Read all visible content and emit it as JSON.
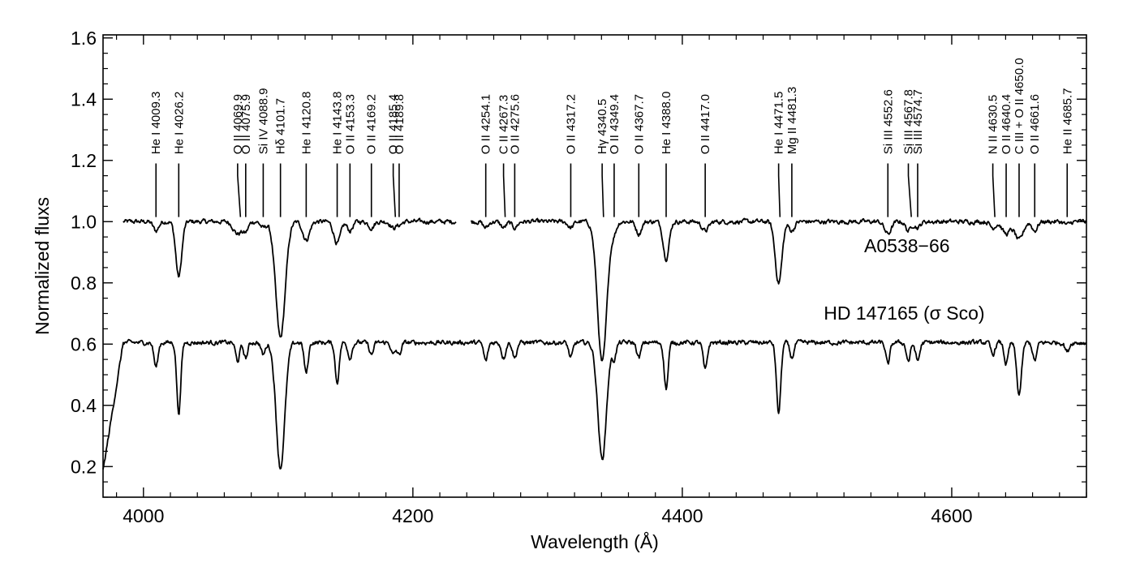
{
  "chart_data": {
    "type": "line",
    "title": "",
    "xlabel": "Wavelength (Å)",
    "ylabel": "Normalized fluxs",
    "xlim": [
      3970,
      4700
    ],
    "ylim": [
      0.1,
      1.61
    ],
    "x_ticks": [
      4000,
      4200,
      4400,
      4600
    ],
    "x_tick_labels": [
      "4000",
      "4200",
      "4400",
      "4600"
    ],
    "y_ticks": [
      0.2,
      0.4,
      0.6,
      0.8,
      1.0,
      1.2,
      1.4,
      1.6
    ],
    "y_tick_labels": [
      "0.2",
      "0.4",
      "0.6",
      "0.8",
      "1.0",
      "1.2",
      "1.4",
      "1.6"
    ],
    "x_minor_step": 20,
    "y_minor_step": 0.05,
    "grid": false,
    "series": [
      {
        "name": "A0538−66",
        "continuum": 1.0,
        "noise": 0.012,
        "gaps": [
          [
            4232,
            4243
          ]
        ],
        "range": [
          3985,
          4700
        ],
        "label_at": [
          4535,
          0.9
        ],
        "lines": [
          [
            4009.3,
            0.03,
            2
          ],
          [
            4026.2,
            0.18,
            2.2
          ],
          [
            4069.9,
            0.04,
            3
          ],
          [
            4075.9,
            0.03,
            2
          ],
          [
            4088.9,
            0.02,
            2
          ],
          [
            4101.7,
            0.38,
            3.5
          ],
          [
            4120.8,
            0.06,
            2.5
          ],
          [
            4143.8,
            0.07,
            2.5
          ],
          [
            4153.3,
            0.03,
            2
          ],
          [
            4169.2,
            0.02,
            2
          ],
          [
            4185.4,
            0.02,
            2
          ],
          [
            4189.8,
            0.01,
            2
          ],
          [
            4254.1,
            0.02,
            2
          ],
          [
            4267.3,
            0.02,
            2
          ],
          [
            4275.6,
            0.02,
            2
          ],
          [
            4317.2,
            0.02,
            2
          ],
          [
            4340.5,
            0.46,
            3.5
          ],
          [
            4349.4,
            0.03,
            2
          ],
          [
            4367.7,
            0.04,
            2
          ],
          [
            4388.0,
            0.12,
            2.2
          ],
          [
            4417.0,
            0.03,
            2.5
          ],
          [
            4471.5,
            0.2,
            2.5
          ],
          [
            4481.3,
            0.03,
            2
          ],
          [
            4552.6,
            0.04,
            2.5
          ],
          [
            4567.8,
            0.03,
            2
          ],
          [
            4574.7,
            0.02,
            2
          ],
          [
            4630.5,
            0.02,
            2
          ],
          [
            4640.4,
            0.04,
            3
          ],
          [
            4650.0,
            0.06,
            3
          ],
          [
            4661.6,
            0.03,
            2
          ],
          [
            4685.7,
            0.01,
            2
          ]
        ]
      },
      {
        "name": "HD 147165  (σ Sco)",
        "continuum": 0.605,
        "noise": 0.012,
        "gaps": [],
        "range": [
          3970,
          4700
        ],
        "label_at": [
          4505,
          0.68
        ],
        "lines": [
          [
            4009.3,
            0.08,
            1.5
          ],
          [
            4026.2,
            0.23,
            1.5
          ],
          [
            4069.9,
            0.06,
            1.5
          ],
          [
            4075.9,
            0.05,
            1.5
          ],
          [
            4088.9,
            0.04,
            1.5
          ],
          [
            4101.7,
            0.41,
            3.2
          ],
          [
            4120.8,
            0.1,
            1.5
          ],
          [
            4143.8,
            0.13,
            1.5
          ],
          [
            4153.3,
            0.05,
            1.5
          ],
          [
            4169.2,
            0.04,
            1.5
          ],
          [
            4185.4,
            0.04,
            1.5
          ],
          [
            4189.8,
            0.04,
            1.5
          ],
          [
            4254.1,
            0.06,
            1.5
          ],
          [
            4267.3,
            0.05,
            1.5
          ],
          [
            4275.6,
            0.05,
            1.5
          ],
          [
            4317.2,
            0.05,
            1.5
          ],
          [
            4340.5,
            0.38,
            3.2
          ],
          [
            4349.4,
            0.05,
            1.5
          ],
          [
            4367.7,
            0.05,
            1.5
          ],
          [
            4388.0,
            0.15,
            1.5
          ],
          [
            4417.0,
            0.09,
            1.5
          ],
          [
            4471.5,
            0.23,
            1.6
          ],
          [
            4481.3,
            0.05,
            1.5
          ],
          [
            4552.6,
            0.07,
            1.5
          ],
          [
            4567.8,
            0.06,
            1.5
          ],
          [
            4574.7,
            0.06,
            1.5
          ],
          [
            4630.5,
            0.04,
            1.5
          ],
          [
            4640.4,
            0.07,
            1.5
          ],
          [
            4650.0,
            0.17,
            1.8
          ],
          [
            4661.6,
            0.06,
            1.5
          ],
          [
            4685.7,
            0.03,
            1.5
          ]
        ]
      }
    ],
    "line_ids": [
      {
        "wl": 4009.3,
        "label": "He I  4009.3"
      },
      {
        "wl": 4026.2,
        "label": "He I  4026.2"
      },
      {
        "wl": 4069.9,
        "label": "O II  4069.9",
        "slant_to": 4072.0
      },
      {
        "wl": 4075.9,
        "label": "O II  4075.9"
      },
      {
        "wl": 4088.9,
        "label": "Si IV  4088.9"
      },
      {
        "wl": 4101.7,
        "label": "Hδ  4101.7"
      },
      {
        "wl": 4120.8,
        "label": "He I  4120.8"
      },
      {
        "wl": 4143.8,
        "label": "He I  4143.8"
      },
      {
        "wl": 4153.3,
        "label": "O II  4153.3"
      },
      {
        "wl": 4169.2,
        "label": "O II  4169.2"
      },
      {
        "wl": 4185.4,
        "label": "O II  4185.4",
        "slant_to": 4187.0
      },
      {
        "wl": 4189.8,
        "label": "O II  4189.8"
      },
      {
        "wl": 4254.1,
        "label": "O II  4254.1"
      },
      {
        "wl": 4267.3,
        "label": "C II  4267.3",
        "slant_to": 4268.5
      },
      {
        "wl": 4275.6,
        "label": "O II  4275.6"
      },
      {
        "wl": 4317.2,
        "label": "O II  4317.2"
      },
      {
        "wl": 4340.5,
        "label": "Hγ  4340.5",
        "slant_to": 4341.5
      },
      {
        "wl": 4349.4,
        "label": "O II  4349.4"
      },
      {
        "wl": 4367.7,
        "label": "O II  4367.7"
      },
      {
        "wl": 4388.0,
        "label": "He I  4388.0"
      },
      {
        "wl": 4417.0,
        "label": "O II  4417.0"
      },
      {
        "wl": 4471.5,
        "label": "He I  4471.5",
        "slant_to": 4472.5
      },
      {
        "wl": 4481.3,
        "label": "Mg II  4481.3"
      },
      {
        "wl": 4552.6,
        "label": "Si III  4552.6"
      },
      {
        "wl": 4567.8,
        "label": "Si III  4567.8",
        "slant_to": 4570.0
      },
      {
        "wl": 4574.7,
        "label": "Si III  4574.7"
      },
      {
        "wl": 4630.5,
        "label": "N II  4630.5",
        "slant_to": 4632.0
      },
      {
        "wl": 4640.4,
        "label": "O II  4640.4"
      },
      {
        "wl": 4650.0,
        "label": "C III + O II  4650.0"
      },
      {
        "wl": 4661.6,
        "label": "O II  4661.6"
      },
      {
        "wl": 4685.7,
        "label": "He II  4685.7"
      }
    ]
  }
}
